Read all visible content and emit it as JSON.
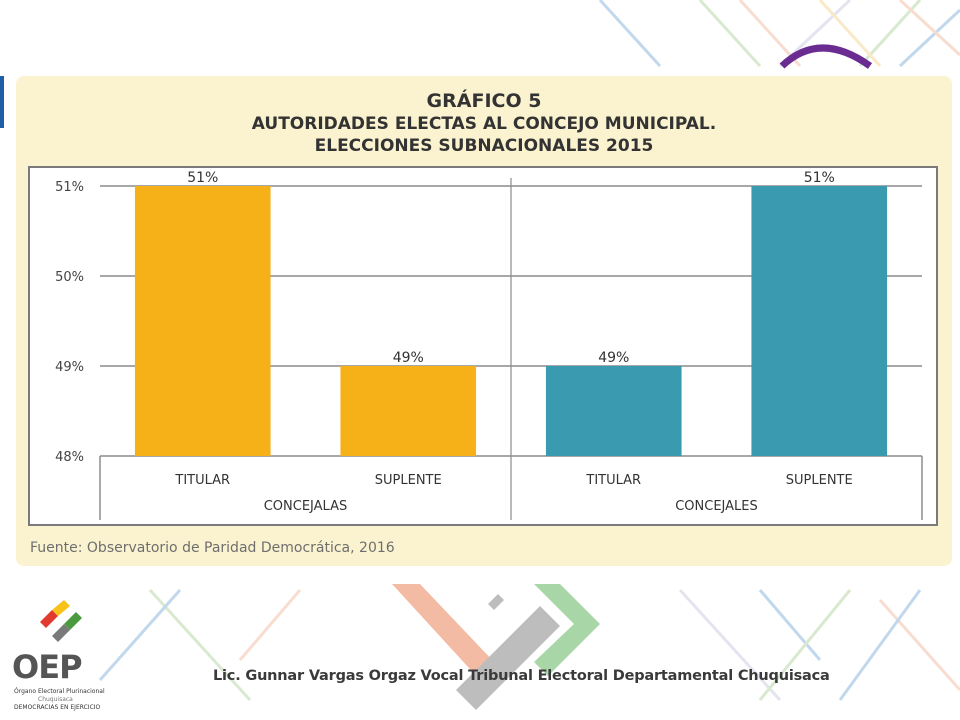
{
  "chart": {
    "title_line1": "GRÁFICO 5",
    "title_line2": "AUTORIDADES ELECTAS AL CONCEJO MUNICIPAL.",
    "title_line3": "ELECCIONES SUBNACIONALES 2015",
    "source": "Fuente: Observatorio de Paridad Democrática, 2016"
  },
  "footer": {
    "text": "Lic. Gunnar Vargas Orgaz Vocal Tribunal Electoral Departamental Chuquisaca",
    "logo_text": "OEP",
    "logo_line1": "Órgano Electoral Plurinacional",
    "logo_line2": "Chuquisaca",
    "logo_line3": "DEMOCRACIAS EN EJERCICIO"
  },
  "colors": {
    "concejalas": "#f5b117",
    "concejales": "#3a9bb0",
    "panel": "#fbf3cf",
    "grid": "#8c8c8c"
  },
  "chart_data": {
    "type": "bar",
    "title": "AUTORIDADES ELECTAS AL CONCEJO MUNICIPAL. ELECCIONES SUBNACIONALES 2015",
    "groups": [
      {
        "name": "CONCEJALAS",
        "color": "#f5b117",
        "bars": [
          {
            "category": "TITULAR",
            "value": 51,
            "label": "51%"
          },
          {
            "category": "SUPLENTE",
            "value": 49,
            "label": "49%"
          }
        ]
      },
      {
        "name": "CONCEJALES",
        "color": "#3a9bb0",
        "bars": [
          {
            "category": "TITULAR",
            "value": 49,
            "label": "49%"
          },
          {
            "category": "SUPLENTE",
            "value": 51,
            "label": "51%"
          }
        ]
      }
    ],
    "ylim": [
      48,
      51
    ],
    "yticks": [
      {
        "value": 51,
        "label": "51%"
      },
      {
        "value": 50,
        "label": "50%"
      },
      {
        "value": 49,
        "label": "49%"
      },
      {
        "value": 48,
        "label": "48%"
      }
    ],
    "grid": true,
    "legend": "none"
  }
}
